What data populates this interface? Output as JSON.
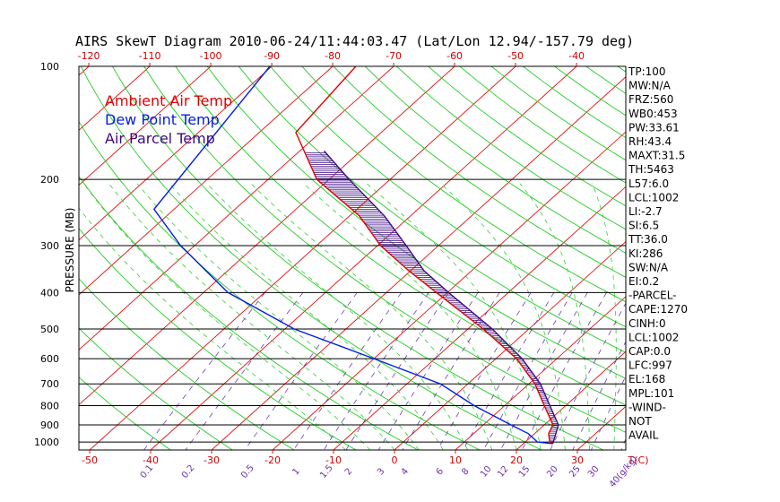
{
  "chart_data": {
    "type": "line",
    "title": "AIRS SkewT Diagram 2010-06-24/11:44:03.47 (Lat/Lon 12.94/-157.79 deg)",
    "ylabel": "PRESSURE (MB)",
    "pressure_ticks": [
      "100",
      "200",
      "300",
      "400",
      "500",
      "600",
      "700",
      "800",
      "900",
      "1000"
    ],
    "pressure_levels": [
      100,
      200,
      300,
      400,
      500,
      600,
      700,
      800,
      900,
      1000
    ],
    "pressure_range": [
      100,
      1050
    ],
    "top_temperature_ticks": [
      "-120",
      "-110",
      "-100",
      "-90",
      "-80",
      "-70",
      "-60",
      "-50",
      "-40"
    ],
    "bottom_temperature_ticks": [
      "-50",
      "-40",
      "-30",
      "-20",
      "-10",
      "0",
      "10",
      "20",
      "30",
      "T(C)"
    ],
    "mixing_ratio_labels": [
      "0.1",
      "0.2",
      "0.5",
      "1",
      "1.5",
      "2",
      "3",
      "4",
      "6",
      "8",
      "10",
      "12",
      "15",
      "20",
      "25",
      "30",
      "40(g/kg)"
    ],
    "legend": [
      {
        "label": "Ambient Air Temp",
        "color": "#e00000"
      },
      {
        "label": "Dew Point Temp",
        "color": "#0020e0"
      },
      {
        "label": "Air Parcel Temp",
        "color": "#3d0a82"
      }
    ],
    "indices": [
      "TP:100",
      "MW:N/A",
      "FRZ:560",
      "WB0:453",
      "PW:33.61",
      "RH:43.4",
      "MAXT:31.5",
      "TH:5463",
      "L57:6.0",
      "LCL:1002",
      "LI:-2.7",
      "SI:6.5",
      "TT:36.0",
      "KI:286",
      "SW:N/A",
      "EI:0.2",
      "-PARCEL-",
      "CAPE:1270",
      "CINH:0",
      "LCL:1002",
      "CAP:0.0",
      "LFC:997",
      "EL:168",
      "MPL:101",
      "-WIND-",
      "NOT",
      "AVAIL"
    ],
    "series": [
      {
        "name": "Ambient Air Temp",
        "color": "#e00000",
        "points": [
          [
            100,
            -76.2
          ],
          [
            150,
            -74
          ],
          [
            200,
            -62
          ],
          [
            250,
            -48.4
          ],
          [
            300,
            -39.5
          ],
          [
            350,
            -30.3
          ],
          [
            400,
            -21.8
          ],
          [
            500,
            -7.5
          ],
          [
            600,
            3.4
          ],
          [
            700,
            11
          ],
          [
            800,
            16.5
          ],
          [
            900,
            21.4
          ],
          [
            950,
            22.3
          ],
          [
            1000,
            24
          ],
          [
            1010,
            24.8
          ]
        ]
      },
      {
        "name": "Dew Point Temp",
        "color": "#0020e0",
        "points": [
          [
            100,
            -90.3
          ],
          [
            240,
            -83.3
          ],
          [
            300,
            -72.3
          ],
          [
            400,
            -56
          ],
          [
            500,
            -38.5
          ],
          [
            600,
            -20
          ],
          [
            700,
            -4.5
          ],
          [
            800,
            5
          ],
          [
            900,
            14.5
          ],
          [
            950,
            19
          ],
          [
            1000,
            22
          ],
          [
            1010,
            24.8
          ]
        ]
      },
      {
        "name": "Air Parcel Temp",
        "color": "#3d0a82",
        "points": [
          [
            168,
            -66
          ],
          [
            200,
            -56.7
          ],
          [
            250,
            -44.3
          ],
          [
            300,
            -35.3
          ],
          [
            350,
            -27.8
          ],
          [
            400,
            -19.8
          ],
          [
            500,
            -6
          ],
          [
            600,
            4.3
          ],
          [
            700,
            11.9
          ],
          [
            800,
            17.4
          ],
          [
            900,
            22.3
          ],
          [
            950,
            23.5
          ],
          [
            1000,
            24.6
          ],
          [
            1010,
            24.8
          ]
        ]
      }
    ],
    "grid": true
  }
}
